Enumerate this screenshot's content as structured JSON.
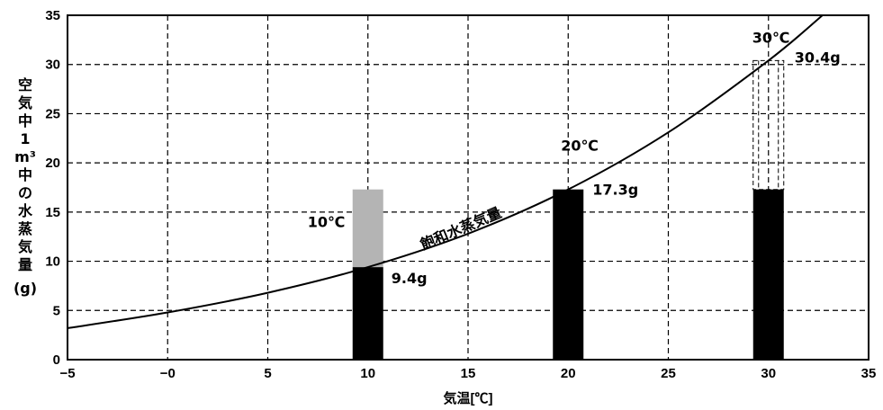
{
  "chart_data": {
    "type": "bar",
    "xlabel": "気温[℃]",
    "ylabel": "空気中1m³中の水蒸気量(g)",
    "xlim": [
      -5,
      35
    ],
    "ylim": [
      0,
      35
    ],
    "xticks": [
      "−5",
      "−0",
      "5",
      "10",
      "15",
      "20",
      "25",
      "30",
      "35"
    ],
    "yticks": [
      "0",
      "5",
      "10",
      "15",
      "20",
      "25",
      "30",
      "35"
    ],
    "grid": true,
    "curve": {
      "label": "飽和水蒸気量",
      "points": [
        [
          -5,
          3.2
        ],
        [
          0,
          4.8
        ],
        [
          5,
          6.8
        ],
        [
          10,
          9.4
        ],
        [
          15,
          12.8
        ],
        [
          20,
          17.3
        ],
        [
          25,
          23.1
        ],
        [
          30,
          30.4
        ],
        [
          32.7,
          35
        ]
      ]
    },
    "bars": [
      {
        "x": 10,
        "water": 9.4,
        "excess": 17.3,
        "temp_label": "10℃",
        "value_label": "9.4g"
      },
      {
        "x": 20,
        "water": 17.3,
        "temp_label": "20℃",
        "value_label": "17.3g"
      },
      {
        "x": 30,
        "water": 17.3,
        "capacity": 30.4,
        "temp_label": "30℃",
        "value_label": "30.4g"
      }
    ]
  }
}
